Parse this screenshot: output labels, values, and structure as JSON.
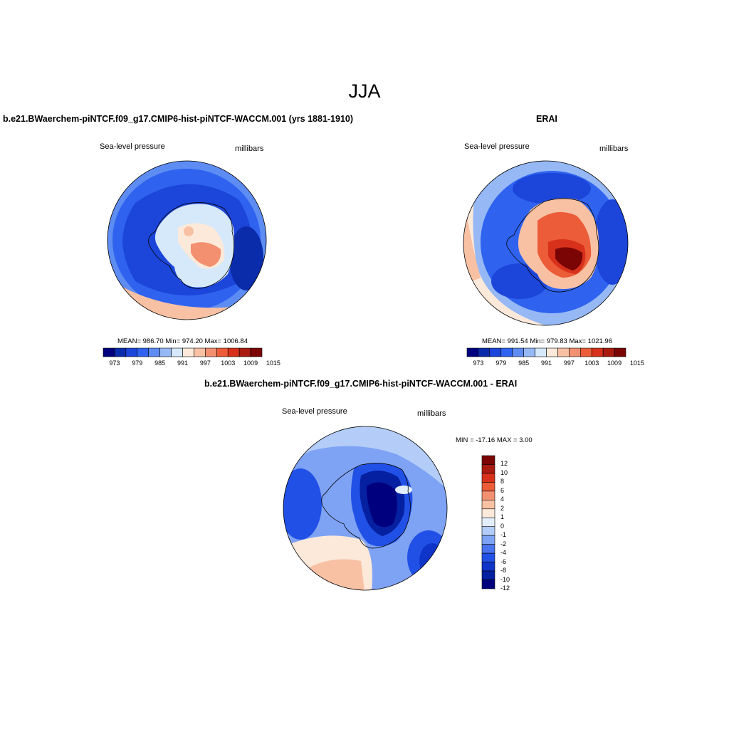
{
  "page_title": "JJA",
  "colors": {
    "seq13": [
      "#00007f",
      "#0a2baa",
      "#1c45d9",
      "#2f63ef",
      "#5d8cf2",
      "#96b8f5",
      "#d5e9fb",
      "#fde9da",
      "#f8c1a4",
      "#f29070",
      "#ec5c38",
      "#d8311b",
      "#a91a10",
      "#7a0504"
    ],
    "diff": [
      "#00007f",
      "#0520a0",
      "#0f34c8",
      "#2150e6",
      "#4a74ee",
      "#7ea2f4",
      "#b3cdf8",
      "#e2eefb",
      "#fde9da",
      "#f8c1a4",
      "#f29070",
      "#ec5c38",
      "#d8311b",
      "#a91a10",
      "#7a0504"
    ]
  },
  "panels": {
    "model": {
      "title": "b.e21.BWaerchem-piNTCF.f09_g17.CMIP6-hist-piNTCF-WACCM.001 (yrs 1881-1910)",
      "left_label": "Sea-level pressure",
      "right_label": "millibars",
      "stats": "MEAN= 986.70  Min= 974.20  Max= 1006.84",
      "colorbar_ticks": [
        "973",
        "979",
        "985",
        "991",
        "997",
        "1003",
        "1009",
        "1015"
      ]
    },
    "erai": {
      "title": "ERAI",
      "left_label": "Sea-level pressure",
      "right_label": "millibars",
      "stats": "MEAN= 991.54  Min= 979.83  Max= 1021.96",
      "colorbar_ticks": [
        "973",
        "979",
        "985",
        "991",
        "997",
        "1003",
        "1009",
        "1015"
      ]
    },
    "diff": {
      "title": "b.e21.BWaerchem-piNTCF.f09_g17.CMIP6-hist-piNTCF-WACCM.001 - ERAI",
      "left_label": "Sea-level pressure",
      "right_label": "millibars",
      "stats": "MIN = -17.16 MAX =   3.00",
      "colorbar_ticks": [
        "12",
        "10",
        "8",
        "6",
        "4",
        "2",
        "1",
        "0",
        "-1",
        "-2",
        "-4",
        "-6",
        "-8",
        "-10",
        "-12"
      ]
    }
  }
}
